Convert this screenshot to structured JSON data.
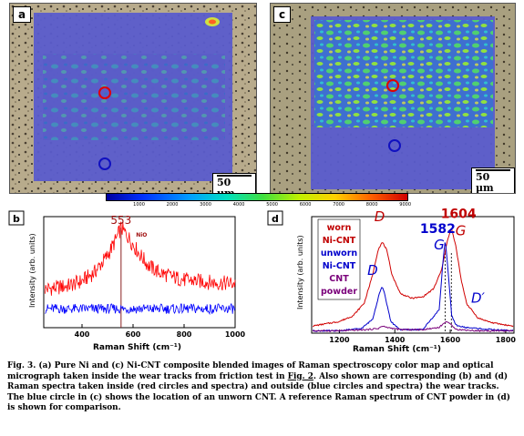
{
  "panels": {
    "a": {
      "letter": "a",
      "scale_label": "50 µm"
    },
    "c": {
      "letter": "c",
      "scale_label": "50 µm"
    },
    "b": {
      "letter": "b"
    },
    "d": {
      "letter": "d"
    }
  },
  "colorbar": {
    "ticks": [
      "1000",
      "2000",
      "3000",
      "4000",
      "5000",
      "6000",
      "7000",
      "8000",
      "9000"
    ],
    "colors": [
      "#0000a0",
      "#0030ff",
      "#00a0ff",
      "#00e0c0",
      "#40e040",
      "#c0f000",
      "#ffd000",
      "#ff6000",
      "#d00000"
    ]
  },
  "chart_data": [
    {
      "type": "line",
      "panel": "b",
      "xlabel": "Raman Shift (cm⁻¹)",
      "ylabel": "Intensity (arb. units)",
      "xlim": [
        250,
        1000
      ],
      "x_ticks": [
        "400",
        "600",
        "800",
        "1000"
      ],
      "annotations": [
        {
          "text": "553",
          "x": 553
        },
        {
          "text": "NiO",
          "x": 590
        }
      ],
      "series": [
        {
          "color": "#ff0000",
          "x": [
            260,
            300,
            350,
            400,
            450,
            500,
            530,
            553,
            580,
            620,
            660,
            700,
            750,
            800,
            850,
            900,
            950,
            995
          ],
          "y": [
            0.35,
            0.36,
            0.38,
            0.42,
            0.5,
            0.65,
            0.78,
            0.9,
            0.82,
            0.68,
            0.56,
            0.5,
            0.46,
            0.43,
            0.42,
            0.41,
            0.4,
            0.4
          ]
        },
        {
          "color": "#0000ff",
          "x": [
            260,
            300,
            350,
            400,
            450,
            500,
            550,
            600,
            650,
            700,
            750,
            800,
            850,
            900,
            950,
            995
          ],
          "y": [
            0.17,
            0.17,
            0.17,
            0.17,
            0.17,
            0.17,
            0.17,
            0.17,
            0.17,
            0.17,
            0.17,
            0.17,
            0.17,
            0.17,
            0.17,
            0.17
          ]
        }
      ]
    },
    {
      "type": "line",
      "panel": "d",
      "xlabel": "Raman Shift (cm⁻¹)",
      "ylabel": "Intensity (arb. units)",
      "xlim": [
        1100,
        1830
      ],
      "x_ticks": [
        "1200",
        "1400",
        "1600",
        "1800"
      ],
      "legend": [
        {
          "text": "worn",
          "color": "#c00000"
        },
        {
          "text": "Ni-CNT",
          "color": "#c00000"
        },
        {
          "text": "unworn",
          "color": "#0000cc"
        },
        {
          "text": "Ni-CNT",
          "color": "#0000cc"
        },
        {
          "text": "CNT",
          "color": "#7a007a"
        },
        {
          "text": "powder",
          "color": "#7a007a"
        }
      ],
      "peak_labels": [
        {
          "text": "D",
          "color": "#c00000",
          "x": 1345,
          "y": 0.96
        },
        {
          "text": "1582",
          "color": "#0000cc",
          "x": 1555,
          "y": 0.86
        },
        {
          "text": "G",
          "color": "#0000cc",
          "x": 1560,
          "y": 0.72
        },
        {
          "text": "1604",
          "color": "#c00000",
          "x": 1630,
          "y": 0.99
        },
        {
          "text": "G",
          "color": "#c00000",
          "x": 1638,
          "y": 0.84
        },
        {
          "text": "D",
          "color": "#0000cc",
          "x": 1320,
          "y": 0.5
        },
        {
          "text": "D′",
          "color": "#0000cc",
          "x": 1700,
          "y": 0.26
        }
      ],
      "series": [
        {
          "color": "#d00000",
          "x": [
            1100,
            1150,
            1200,
            1250,
            1290,
            1320,
            1340,
            1355,
            1370,
            1390,
            1420,
            1460,
            1500,
            1540,
            1570,
            1590,
            1604,
            1620,
            1640,
            1660,
            1700,
            1750,
            1800,
            1830
          ],
          "y": [
            0.06,
            0.08,
            0.1,
            0.15,
            0.26,
            0.5,
            0.72,
            0.78,
            0.72,
            0.5,
            0.34,
            0.3,
            0.31,
            0.38,
            0.55,
            0.8,
            0.9,
            0.75,
            0.45,
            0.25,
            0.13,
            0.09,
            0.07,
            0.06
          ]
        },
        {
          "color": "#0000cc",
          "x": [
            1100,
            1200,
            1280,
            1320,
            1345,
            1355,
            1365,
            1385,
            1420,
            1500,
            1560,
            1575,
            1582,
            1590,
            1605,
            1620,
            1650,
            1700,
            1750,
            1830
          ],
          "y": [
            0.02,
            0.02,
            0.04,
            0.12,
            0.35,
            0.4,
            0.32,
            0.1,
            0.03,
            0.03,
            0.2,
            0.65,
            0.8,
            0.6,
            0.15,
            0.07,
            0.05,
            0.04,
            0.03,
            0.02
          ]
        },
        {
          "color": "#7a007a",
          "x": [
            1100,
            1200,
            1300,
            1340,
            1355,
            1370,
            1420,
            1500,
            1560,
            1580,
            1590,
            1600,
            1610,
            1630,
            1700,
            1830
          ],
          "y": [
            0.02,
            0.02,
            0.03,
            0.04,
            0.06,
            0.05,
            0.03,
            0.03,
            0.05,
            0.09,
            0.1,
            0.08,
            0.05,
            0.03,
            0.02,
            0.02
          ]
        }
      ]
    }
  ],
  "caption": {
    "p1": "Fig. 3.  (a) Pure Ni and (c) Ni-CNT composite blended images of Raman spectroscopy color map and optical micrograph taken inside the wear tracks from friction test in ",
    "link": "Fig. 2",
    "p2": ".  Also shown are corresponding (b) and (d) Raman spectra taken inside (red circles and spectra) and outside (blue circles and spectra) the wear tracks. The blue circle in (c) shows the location of an unworn CNT.  A reference Raman spectrum of CNT powder in (d) is shown for comparison."
  }
}
